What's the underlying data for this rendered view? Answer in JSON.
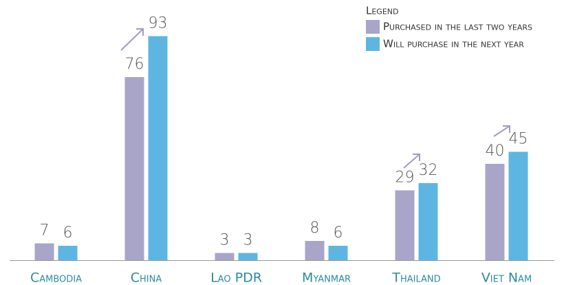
{
  "chart_data": {
    "type": "bar",
    "legend_title": "Legend",
    "categories": [
      "Cambodia",
      "China",
      "Lao PDR",
      "Myanmar",
      "Thailand",
      "Viet Nam"
    ],
    "series": [
      {
        "name": "Purchased in the last two years",
        "color": "#a8a5c9",
        "values": [
          7,
          76,
          3,
          8,
          29,
          40
        ]
      },
      {
        "name": "Will purchase in the next year",
        "color": "#5db6e2",
        "values": [
          6,
          93,
          3,
          6,
          32,
          45
        ]
      }
    ],
    "ylim": [
      0,
      100
    ],
    "legend": "top-right"
  }
}
